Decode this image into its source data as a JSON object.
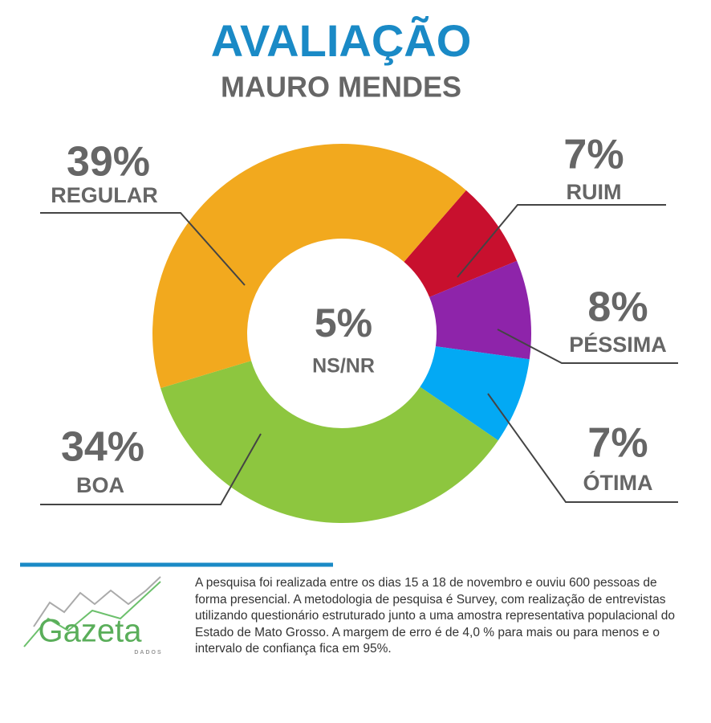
{
  "chart_data": {
    "type": "donut",
    "title": "AVALIAÇÃO",
    "subtitle": "MAURO MENDES",
    "categories": [
      "RUIM",
      "PÉSSIMA",
      "ÓTIMA",
      "BOA",
      "REGULAR"
    ],
    "values": [
      7,
      8,
      7,
      34,
      39
    ],
    "value_labels": [
      "7%",
      "8%",
      "7%",
      "34%",
      "39%"
    ],
    "colors": [
      "#c8102e",
      "#8e24aa",
      "#03a9f4",
      "#8dc63f",
      "#f2a91e"
    ],
    "center": {
      "label": "NS/NR",
      "value": 5,
      "value_label": "5%"
    }
  },
  "footer": {
    "logo": "Gazeta",
    "logo_sub": "DADOS",
    "note": "A pesquisa foi realizada entre os dias 15 a 18 de novembro e ouviu 600 pessoas de forma presencial. A metodologia de pesquisa é Survey, com realização de entrevistas utilizando questionário estruturado junto a uma amostra representativa populacional do Estado de Mato Grosso. A margem de erro é de 4,0 % para mais ou para menos e o intervalo de confiança fica em 95%."
  }
}
